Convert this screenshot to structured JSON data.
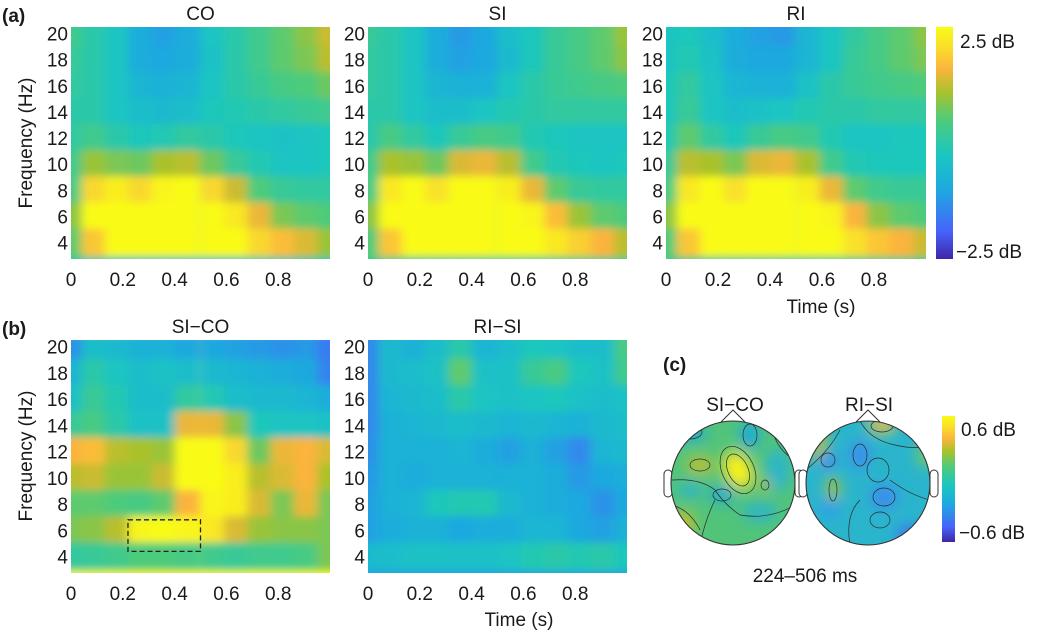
{
  "figure": {
    "panel_labels": [
      "(a)",
      "(b)",
      "(c)"
    ],
    "topomap_window": "224–506 ms"
  },
  "chart_data": [
    {
      "type": "heatmap",
      "panel": "(a)",
      "title": "CO",
      "xlabel": "",
      "ylabel": "Frequency (Hz)",
      "xlim": [
        0,
        1.0
      ],
      "ylim": [
        2.75,
        20.5
      ],
      "xticks": [
        "0",
        "0.2",
        "0.4",
        "0.6",
        "0.8"
      ],
      "yticks": [
        "20",
        "18",
        "16",
        "14",
        "12",
        "10",
        "8",
        "6",
        "4"
      ],
      "x": [
        0.0,
        0.09,
        0.18,
        0.27,
        0.36,
        0.45,
        0.55,
        0.64,
        0.73,
        0.82,
        0.91,
        1.0
      ],
      "y": [
        20,
        18,
        16,
        14,
        12,
        10,
        8,
        6,
        4
      ],
      "z": [
        [
          0.3,
          0.0,
          -0.3,
          -0.9,
          -1.1,
          -0.9,
          -0.3,
          0.0,
          0.3,
          0.6,
          0.9,
          1.3
        ],
        [
          0.2,
          0.0,
          -0.3,
          -0.9,
          -1.0,
          -0.9,
          -0.4,
          0.0,
          0.3,
          0.6,
          0.8,
          1.2
        ],
        [
          0.1,
          0.0,
          -0.3,
          -0.7,
          -0.8,
          -0.7,
          -0.3,
          0.0,
          0.2,
          0.4,
          0.5,
          0.7
        ],
        [
          0.0,
          0.0,
          -0.3,
          -0.5,
          -0.6,
          -0.5,
          -0.2,
          -0.1,
          0.0,
          0.1,
          0.2,
          0.3
        ],
        [
          0.1,
          0.3,
          0.0,
          -0.2,
          -0.1,
          0.1,
          0.0,
          -0.2,
          -0.3,
          -0.4,
          -0.3,
          -0.2
        ],
        [
          0.3,
          1.0,
          0.8,
          0.7,
          1.1,
          1.2,
          0.7,
          0.2,
          -0.1,
          -0.3,
          -0.3,
          -0.2
        ],
        [
          0.4,
          2.0,
          2.3,
          2.0,
          2.4,
          2.6,
          2.0,
          1.3,
          0.5,
          0.2,
          0.1,
          0.1
        ],
        [
          0.9,
          2.7,
          2.8,
          2.8,
          2.9,
          2.9,
          2.7,
          2.2,
          1.5,
          0.8,
          0.6,
          0.5
        ],
        [
          0.6,
          1.8,
          2.6,
          2.9,
          2.9,
          2.9,
          2.8,
          2.6,
          2.0,
          1.7,
          1.4,
          1.0
        ]
      ]
    },
    {
      "type": "heatmap",
      "panel": "(a)",
      "title": "SI",
      "xlabel": "",
      "ylabel": "",
      "xlim": [
        0,
        1.0
      ],
      "ylim": [
        2.75,
        20.5
      ],
      "xticks": [
        "0",
        "0.2",
        "0.4",
        "0.6",
        "0.8"
      ],
      "yticks": [
        "20",
        "18",
        "16",
        "14",
        "12",
        "10",
        "8",
        "6",
        "4"
      ],
      "x": [
        0.0,
        0.09,
        0.18,
        0.27,
        0.36,
        0.45,
        0.55,
        0.64,
        0.73,
        0.82,
        0.91,
        1.0
      ],
      "y": [
        20,
        18,
        16,
        14,
        12,
        10,
        8,
        6,
        4
      ],
      "z": [
        [
          0.2,
          0.0,
          -0.3,
          -0.9,
          -1.2,
          -1.0,
          -0.5,
          -0.2,
          0.2,
          0.4,
          0.6,
          1.0
        ],
        [
          0.1,
          0.0,
          -0.3,
          -0.9,
          -1.1,
          -1.0,
          -0.6,
          -0.2,
          0.2,
          0.4,
          0.6,
          0.9
        ],
        [
          0.1,
          0.0,
          -0.3,
          -0.7,
          -0.8,
          -0.8,
          -0.3,
          0.0,
          0.2,
          0.3,
          0.4,
          0.5
        ],
        [
          0.0,
          0.0,
          -0.3,
          -0.5,
          -0.5,
          -0.3,
          -0.1,
          0.0,
          0.1,
          0.1,
          0.1,
          0.1
        ],
        [
          0.0,
          0.4,
          0.1,
          -0.2,
          0.2,
          0.4,
          0.3,
          -0.1,
          -0.2,
          -0.3,
          -0.3,
          -0.3
        ],
        [
          0.3,
          1.1,
          1.0,
          0.7,
          1.4,
          1.5,
          1.2,
          0.3,
          -0.1,
          -0.2,
          -0.3,
          -0.2
        ],
        [
          0.4,
          2.2,
          2.5,
          2.1,
          2.6,
          2.8,
          2.3,
          1.5,
          0.6,
          0.2,
          0.1,
          0.1
        ],
        [
          0.9,
          2.8,
          2.8,
          2.9,
          2.9,
          2.9,
          2.8,
          2.4,
          1.7,
          1.0,
          0.6,
          0.5
        ],
        [
          0.5,
          1.8,
          2.7,
          2.9,
          2.9,
          2.9,
          2.9,
          2.7,
          2.2,
          1.9,
          1.6,
          1.2
        ]
      ]
    },
    {
      "type": "heatmap",
      "panel": "(a)",
      "title": "RI",
      "xlabel": "Time (s)",
      "ylabel": "",
      "xlim": [
        0,
        1.0
      ],
      "ylim": [
        2.75,
        20.5
      ],
      "xticks": [
        "0",
        "0.2",
        "0.4",
        "0.6",
        "0.8"
      ],
      "yticks": [
        "20",
        "18",
        "16",
        "14",
        "12",
        "10",
        "8",
        "6",
        "4"
      ],
      "x": [
        0.0,
        0.09,
        0.18,
        0.27,
        0.36,
        0.45,
        0.55,
        0.64,
        0.73,
        0.82,
        0.91,
        1.0
      ],
      "y": [
        20,
        18,
        16,
        14,
        12,
        10,
        8,
        6,
        4
      ],
      "z": [
        [
          -0.3,
          -0.2,
          -0.5,
          -0.9,
          -1.1,
          -1.2,
          -0.7,
          -0.3,
          0.1,
          0.4,
          0.6,
          0.9
        ],
        [
          -0.3,
          -0.1,
          -0.4,
          -0.9,
          -1.0,
          -1.0,
          -0.7,
          -0.3,
          0.2,
          0.4,
          0.6,
          0.8
        ],
        [
          -0.2,
          0.1,
          -0.3,
          -0.7,
          -0.8,
          -0.8,
          -0.4,
          0.0,
          0.2,
          0.3,
          0.4,
          0.5
        ],
        [
          -0.2,
          0.2,
          -0.3,
          -0.5,
          -0.4,
          -0.3,
          -0.1,
          0.0,
          0.0,
          0.1,
          0.1,
          0.1
        ],
        [
          -0.1,
          0.6,
          0.1,
          -0.2,
          0.2,
          0.4,
          0.3,
          -0.1,
          -0.3,
          -0.3,
          -0.2,
          -0.2
        ],
        [
          0.2,
          1.2,
          1.1,
          0.8,
          1.4,
          1.5,
          1.1,
          0.3,
          -0.1,
          -0.2,
          -0.2,
          -0.2
        ],
        [
          0.4,
          2.2,
          2.5,
          2.1,
          2.6,
          2.8,
          2.3,
          1.5,
          0.6,
          0.3,
          0.2,
          0.2
        ],
        [
          0.9,
          2.8,
          2.8,
          2.9,
          2.9,
          2.9,
          2.8,
          2.4,
          1.6,
          0.9,
          0.6,
          0.5
        ],
        [
          0.5,
          1.8,
          2.7,
          2.9,
          2.9,
          2.9,
          2.9,
          2.6,
          2.1,
          1.8,
          1.6,
          1.3
        ]
      ]
    },
    {
      "type": "heatmap",
      "panel": "(b)",
      "title": "SI−CO",
      "xlabel": "",
      "ylabel": "Frequency (Hz)",
      "xlim": [
        0,
        1.0
      ],
      "ylim": [
        2.75,
        20.5
      ],
      "xticks": [
        "0",
        "0.2",
        "0.4",
        "0.6",
        "0.8"
      ],
      "yticks": [
        "20",
        "18",
        "16",
        "14",
        "12",
        "10",
        "8",
        "6",
        "4"
      ],
      "x": [
        0.0,
        0.09,
        0.18,
        0.27,
        0.36,
        0.45,
        0.55,
        0.64,
        0.73,
        0.82,
        0.91,
        1.0
      ],
      "y": [
        20,
        18,
        16,
        14,
        12,
        10,
        8,
        6,
        4
      ],
      "z": [
        [
          -1.3,
          -0.5,
          -0.6,
          -0.8,
          -0.8,
          -1.0,
          -1.0,
          -1.1,
          -1.2,
          -1.3,
          -1.2,
          -1.6
        ],
        [
          -0.7,
          0.0,
          -0.3,
          -0.5,
          -0.4,
          -0.5,
          -0.6,
          -0.7,
          -0.8,
          -0.9,
          -1.0,
          -1.5
        ],
        [
          -0.4,
          0.2,
          -0.1,
          -0.5,
          -0.5,
          0.1,
          -0.1,
          -0.5,
          -0.6,
          -0.6,
          -0.7,
          -0.9
        ],
        [
          0.2,
          0.4,
          0.0,
          -0.4,
          -0.4,
          1.5,
          1.5,
          0.9,
          -0.2,
          -0.3,
          -0.3,
          -0.4
        ],
        [
          1.6,
          1.7,
          1.2,
          1.1,
          1.0,
          2.5,
          2.5,
          2.0,
          0.7,
          1.5,
          1.6,
          1.4
        ],
        [
          1.2,
          1.3,
          1.0,
          1.0,
          1.3,
          2.6,
          2.6,
          2.3,
          1.2,
          1.4,
          1.6,
          1.1
        ],
        [
          0.6,
          0.6,
          0.5,
          0.4,
          0.6,
          1.6,
          2.4,
          2.3,
          1.4,
          0.8,
          1.5,
          0.8
        ],
        [
          0.8,
          0.9,
          1.2,
          2.4,
          2.6,
          2.4,
          2.2,
          1.4,
          1.0,
          0.9,
          0.9,
          0.8
        ],
        [
          0.1,
          0.2,
          0.3,
          0.5,
          0.5,
          0.4,
          0.3,
          0.2,
          0.3,
          0.3,
          0.4,
          0.8
        ]
      ],
      "annotation": {
        "shape": "dashed-rectangle",
        "t_range": [
          0.22,
          0.5
        ],
        "f_range": [
          4.4,
          6.8
        ]
      }
    },
    {
      "type": "heatmap",
      "panel": "(b)",
      "title": "RI−SI",
      "xlabel": "Time (s)",
      "ylabel": "",
      "xlim": [
        0,
        1.0
      ],
      "ylim": [
        2.75,
        20.5
      ],
      "xticks": [
        "0",
        "0.2",
        "0.4",
        "0.6",
        "0.8"
      ],
      "yticks": [
        "20",
        "18",
        "16",
        "14",
        "12",
        "10",
        "8",
        "6",
        "4"
      ],
      "x": [
        0.0,
        0.09,
        0.18,
        0.27,
        0.36,
        0.45,
        0.55,
        0.64,
        0.73,
        0.82,
        0.91,
        1.0
      ],
      "y": [
        20,
        18,
        16,
        14,
        12,
        10,
        8,
        6,
        4
      ],
      "z": [
        [
          -1.4,
          -0.6,
          -0.8,
          -0.5,
          0.0,
          -0.7,
          -0.5,
          -0.2,
          -0.3,
          -0.5,
          -0.5,
          0.4
        ],
        [
          -1.4,
          -0.6,
          -0.5,
          -0.4,
          0.6,
          -0.4,
          -0.4,
          0.2,
          0.4,
          -0.2,
          -0.4,
          0.3
        ],
        [
          -1.4,
          -0.7,
          -0.6,
          -0.5,
          0.0,
          -0.3,
          -0.4,
          -0.3,
          -0.2,
          -0.4,
          -0.5,
          -0.4
        ],
        [
          -1.4,
          -0.8,
          -0.7,
          -0.6,
          -0.5,
          -0.6,
          -0.7,
          -0.6,
          -0.7,
          -0.8,
          -0.6,
          -0.5
        ],
        [
          -1.3,
          -0.8,
          -0.8,
          -0.8,
          -0.7,
          -0.9,
          -1.1,
          -0.8,
          -1.1,
          -1.4,
          -0.7,
          -0.6
        ],
        [
          -1.2,
          -0.8,
          -0.9,
          -0.8,
          -0.8,
          -0.8,
          -0.8,
          -0.8,
          -0.9,
          -1.2,
          -1.0,
          -0.9
        ],
        [
          -1.1,
          -0.8,
          -0.7,
          -0.2,
          -0.1,
          -0.1,
          -0.6,
          -0.8,
          -0.9,
          -1.0,
          -1.3,
          -1.0
        ],
        [
          -1.1,
          -0.9,
          -0.8,
          -0.8,
          -1.0,
          -0.9,
          -0.9,
          -0.7,
          -0.7,
          -1.0,
          -1.1,
          -0.8
        ],
        [
          -0.6,
          -0.5,
          -0.4,
          -0.4,
          -0.4,
          -0.4,
          -0.3,
          -0.1,
          0.0,
          -0.1,
          0.0,
          -0.2
        ]
      ]
    },
    {
      "type": "heatmap",
      "panel": "(a)",
      "title": "colorbar",
      "zlim": [
        -2.5,
        2.5
      ],
      "labels": [
        "2.5 dB",
        "−2.5 dB"
      ],
      "colormap": [
        "#3e26a8",
        "#4664fb",
        "#1ea9df",
        "#1ac7c0",
        "#4ecb7b",
        "#a9c22c",
        "#fbb43c",
        "#f9e129",
        "#f9fb15"
      ]
    },
    {
      "type": "heatmap",
      "panel": "(c)",
      "title": "topomaps",
      "maps": [
        {
          "name": "SI−CO"
        },
        {
          "name": "RI−SI"
        }
      ],
      "zlim": [
        -0.6,
        0.6
      ],
      "labels": [
        "0.6 dB",
        "−0.6 dB"
      ],
      "window": "224–506 ms"
    }
  ]
}
